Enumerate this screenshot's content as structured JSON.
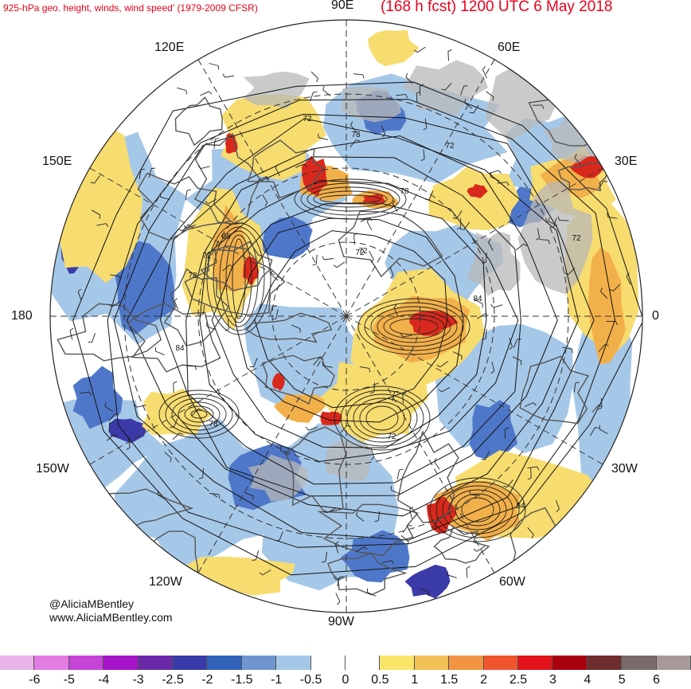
{
  "header": {
    "title_left": "925-hPa geo. height, winds, wind speed' (1979-2009 CFSR)",
    "title_right": "(168 h fcst) 1200 UTC 6 May 2018"
  },
  "map": {
    "projection": "polar stereographic (north pole)",
    "lon_labels": [
      {
        "id": "90E",
        "text": "90E"
      },
      {
        "id": "60E",
        "text": "60E"
      },
      {
        "id": "30E",
        "text": "30E"
      },
      {
        "id": "0",
        "text": "0"
      },
      {
        "id": "30W",
        "text": "30W"
      },
      {
        "id": "60W",
        "text": "60W"
      },
      {
        "id": "90W",
        "text": "90W"
      },
      {
        "id": "120W",
        "text": "120W"
      },
      {
        "id": "150W",
        "text": "150W"
      },
      {
        "id": "180",
        "text": "180"
      },
      {
        "id": "150E",
        "text": "150E"
      },
      {
        "id": "120E",
        "text": "120E"
      }
    ],
    "contour_labels": [
      "72",
      "78",
      "72",
      "78",
      "72",
      "66",
      "72",
      "78",
      "84",
      "72",
      "84",
      "78",
      "72",
      "84",
      "72"
    ],
    "colors": {
      "neg_strong": "#3a3aa8",
      "neg_mid": "#4f77c9",
      "neg_light": "#a6c8e8",
      "neutral": "#ffffff",
      "pos_light": "#f7dc6f",
      "pos_mid": "#f2b04a",
      "pos_strong": "#d9281c",
      "land": "#b8b8b8"
    }
  },
  "colorbar": {
    "colors": [
      "#e8b4e8",
      "#e37ce3",
      "#c544d6",
      "#a514c8",
      "#6a2aa8",
      "#3a3aa8",
      "#2f62b8",
      "#6e95d0",
      "#a6c8e8",
      "#ffffff",
      "#ffffff",
      "#fbe46a",
      "#f2c155",
      "#f29442",
      "#f0552e",
      "#e3121b",
      "#a8000c",
      "#6e2e2e",
      "#7a6b6b",
      "#a89a9a"
    ],
    "ticks": [
      "-6",
      "-5",
      "-4",
      "-3",
      "-2.5",
      "-2",
      "-1.5",
      "-1",
      "-0.5",
      "0",
      "0.5",
      "1",
      "1.5",
      "2",
      "2.5",
      "3",
      "4",
      "5",
      "6"
    ]
  },
  "credits": {
    "line1": "@AliciaMBentley",
    "line2": "www.AliciaMBentley.com"
  }
}
